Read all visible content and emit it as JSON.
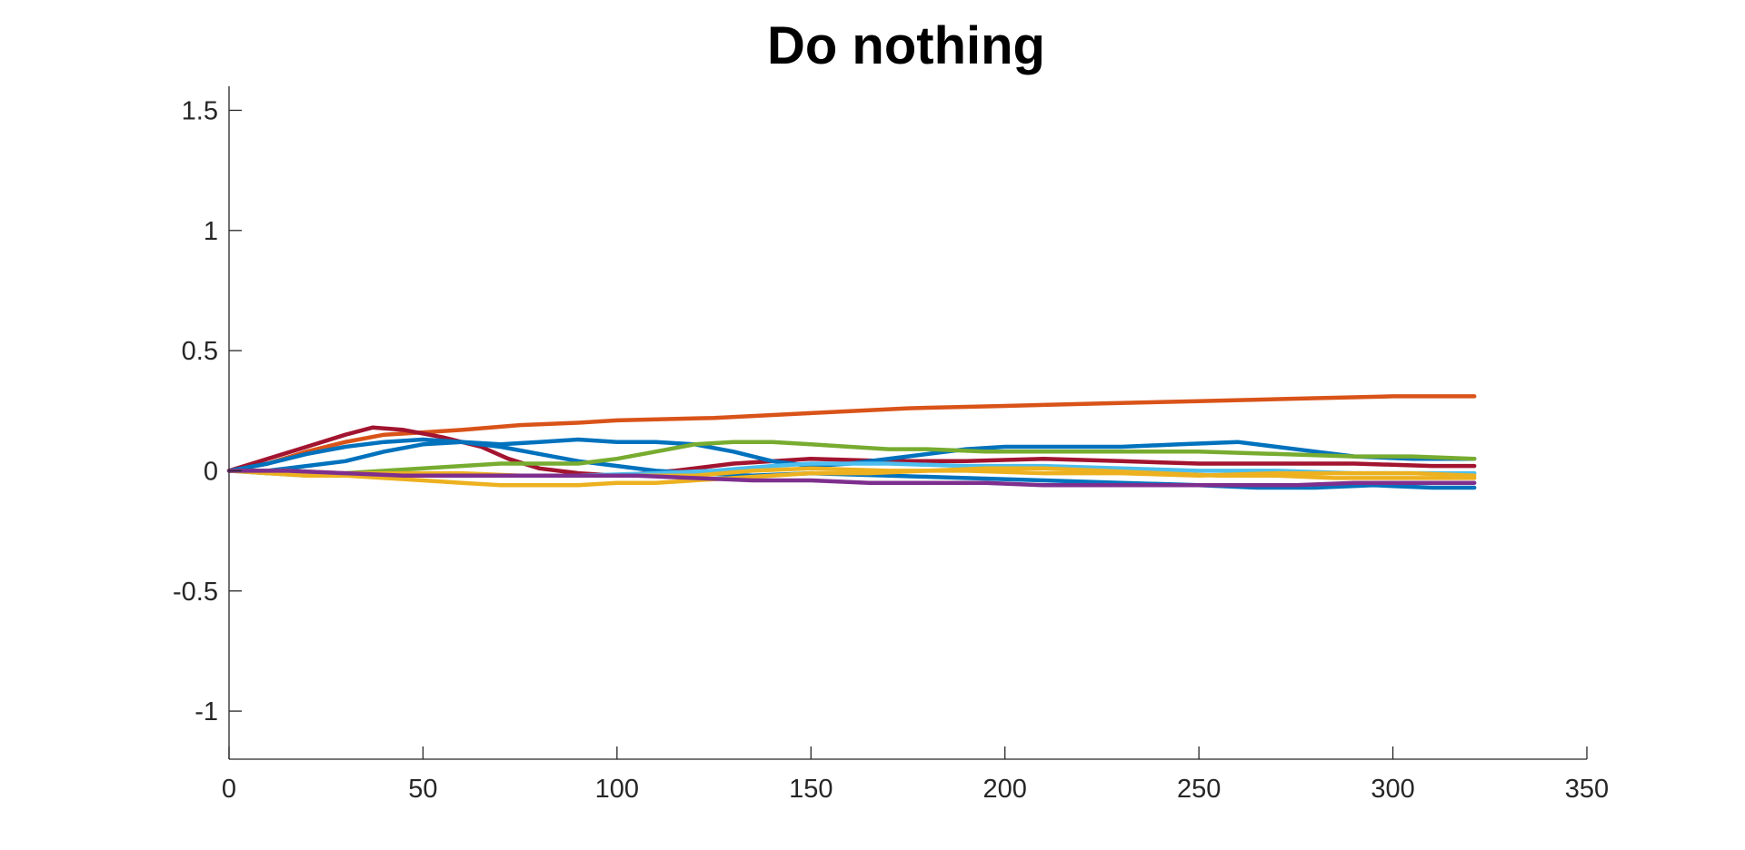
{
  "chart_data": {
    "type": "line",
    "title": "Do nothing",
    "xlabel": "",
    "ylabel": "",
    "xlim": [
      0,
      350
    ],
    "ylim": [
      -1.2,
      1.6
    ],
    "xticks": [
      0,
      50,
      100,
      150,
      200,
      250,
      300,
      350
    ],
    "xtick_labels": [
      "0",
      "50",
      "100",
      "150",
      "200",
      "250",
      "300",
      "350"
    ],
    "yticks": [
      -1,
      -0.5,
      0,
      0.5,
      1,
      1.5
    ],
    "ytick_labels": [
      "-1",
      "-0.5",
      "0",
      "0.5",
      "1",
      "1.5"
    ],
    "grid": false,
    "legend": "none",
    "colors": {
      "axis": "#262626",
      "title": "#000000",
      "background": "#ffffff"
    },
    "series": [
      {
        "color": "#D95319",
        "points": [
          [
            0,
            0
          ],
          [
            10,
            0.03
          ],
          [
            20,
            0.08
          ],
          [
            30,
            0.12
          ],
          [
            40,
            0.15
          ],
          [
            50,
            0.16
          ],
          [
            60,
            0.17
          ],
          [
            75,
            0.19
          ],
          [
            90,
            0.2
          ],
          [
            100,
            0.21
          ],
          [
            125,
            0.22
          ],
          [
            150,
            0.24
          ],
          [
            175,
            0.26
          ],
          [
            200,
            0.27
          ],
          [
            225,
            0.28
          ],
          [
            250,
            0.29
          ],
          [
            275,
            0.3
          ],
          [
            300,
            0.31
          ],
          [
            321,
            0.31
          ]
        ]
      },
      {
        "color": "#A2142F",
        "points": [
          [
            0,
            0
          ],
          [
            10,
            0.05
          ],
          [
            20,
            0.1
          ],
          [
            30,
            0.15
          ],
          [
            37,
            0.18
          ],
          [
            45,
            0.17
          ],
          [
            55,
            0.14
          ],
          [
            65,
            0.1
          ],
          [
            72,
            0.05
          ],
          [
            80,
            0.01
          ],
          [
            90,
            -0.01
          ],
          [
            100,
            -0.02
          ],
          [
            115,
            0.0
          ],
          [
            130,
            0.03
          ],
          [
            150,
            0.05
          ],
          [
            170,
            0.04
          ],
          [
            190,
            0.04
          ],
          [
            210,
            0.05
          ],
          [
            230,
            0.04
          ],
          [
            250,
            0.03
          ],
          [
            270,
            0.03
          ],
          [
            290,
            0.03
          ],
          [
            310,
            0.02
          ],
          [
            321,
            0.02
          ]
        ]
      },
      {
        "color": "#0072BD",
        "points": [
          [
            0,
            0
          ],
          [
            10,
            0.03
          ],
          [
            20,
            0.07
          ],
          [
            30,
            0.1
          ],
          [
            40,
            0.12
          ],
          [
            50,
            0.13
          ],
          [
            60,
            0.12
          ],
          [
            70,
            0.11
          ],
          [
            80,
            0.12
          ],
          [
            90,
            0.13
          ],
          [
            100,
            0.12
          ],
          [
            110,
            0.12
          ],
          [
            120,
            0.11
          ],
          [
            130,
            0.08
          ],
          [
            140,
            0.04
          ],
          [
            150,
            0.02
          ],
          [
            160,
            0.03
          ],
          [
            175,
            0.06
          ],
          [
            190,
            0.09
          ],
          [
            200,
            0.1
          ],
          [
            215,
            0.1
          ],
          [
            230,
            0.1
          ],
          [
            245,
            0.11
          ],
          [
            260,
            0.12
          ],
          [
            270,
            0.1
          ],
          [
            280,
            0.08
          ],
          [
            290,
            0.06
          ],
          [
            305,
            0.05
          ],
          [
            321,
            0.05
          ]
        ]
      },
      {
        "color": "#0072BD",
        "points": [
          [
            0,
            0
          ],
          [
            10,
            0.0
          ],
          [
            20,
            0.02
          ],
          [
            30,
            0.04
          ],
          [
            40,
            0.08
          ],
          [
            50,
            0.11
          ],
          [
            60,
            0.12
          ],
          [
            70,
            0.1
          ],
          [
            80,
            0.07
          ],
          [
            90,
            0.04
          ],
          [
            100,
            0.02
          ],
          [
            110,
            0.0
          ],
          [
            120,
            -0.01
          ],
          [
            135,
            -0.02
          ],
          [
            150,
            -0.01
          ],
          [
            170,
            -0.02
          ],
          [
            190,
            -0.03
          ],
          [
            210,
            -0.04
          ],
          [
            230,
            -0.05
          ],
          [
            250,
            -0.06
          ],
          [
            265,
            -0.07
          ],
          [
            280,
            -0.07
          ],
          [
            295,
            -0.06
          ],
          [
            310,
            -0.07
          ],
          [
            321,
            -0.07
          ]
        ]
      },
      {
        "color": "#77AC30",
        "points": [
          [
            0,
            0
          ],
          [
            10,
            -0.01
          ],
          [
            20,
            -0.01
          ],
          [
            30,
            -0.01
          ],
          [
            40,
            0.0
          ],
          [
            50,
            0.01
          ],
          [
            60,
            0.02
          ],
          [
            70,
            0.03
          ],
          [
            80,
            0.03
          ],
          [
            90,
            0.03
          ],
          [
            100,
            0.05
          ],
          [
            110,
            0.08
          ],
          [
            120,
            0.11
          ],
          [
            130,
            0.12
          ],
          [
            140,
            0.12
          ],
          [
            150,
            0.11
          ],
          [
            160,
            0.1
          ],
          [
            170,
            0.09
          ],
          [
            180,
            0.09
          ],
          [
            195,
            0.08
          ],
          [
            210,
            0.08
          ],
          [
            230,
            0.08
          ],
          [
            250,
            0.08
          ],
          [
            270,
            0.07
          ],
          [
            290,
            0.06
          ],
          [
            305,
            0.06
          ],
          [
            321,
            0.05
          ]
        ]
      },
      {
        "color": "#4DBEEE",
        "points": [
          [
            0,
            0
          ],
          [
            10,
            -0.01
          ],
          [
            20,
            -0.02
          ],
          [
            35,
            -0.02
          ],
          [
            50,
            -0.02
          ],
          [
            70,
            -0.02
          ],
          [
            90,
            -0.02
          ],
          [
            110,
            -0.01
          ],
          [
            125,
            0.0
          ],
          [
            140,
            0.02
          ],
          [
            150,
            0.03
          ],
          [
            170,
            0.03
          ],
          [
            190,
            0.02
          ],
          [
            210,
            0.02
          ],
          [
            230,
            0.01
          ],
          [
            250,
            0.0
          ],
          [
            270,
            0.0
          ],
          [
            290,
            -0.01
          ],
          [
            305,
            -0.01
          ],
          [
            321,
            -0.01
          ]
        ]
      },
      {
        "color": "#EDB120",
        "points": [
          [
            0,
            0
          ],
          [
            10,
            -0.01
          ],
          [
            20,
            -0.02
          ],
          [
            30,
            -0.02
          ],
          [
            40,
            -0.03
          ],
          [
            50,
            -0.04
          ],
          [
            60,
            -0.05
          ],
          [
            70,
            -0.06
          ],
          [
            80,
            -0.06
          ],
          [
            90,
            -0.06
          ],
          [
            100,
            -0.05
          ],
          [
            110,
            -0.05
          ],
          [
            120,
            -0.04
          ],
          [
            130,
            -0.03
          ],
          [
            140,
            -0.02
          ],
          [
            150,
            -0.01
          ],
          [
            165,
            -0.01
          ],
          [
            180,
            0.0
          ],
          [
            195,
            0.01
          ],
          [
            210,
            0.01
          ],
          [
            225,
            0.0
          ],
          [
            240,
            -0.01
          ],
          [
            255,
            -0.02
          ],
          [
            270,
            -0.02
          ],
          [
            285,
            -0.03
          ],
          [
            300,
            -0.03
          ],
          [
            321,
            -0.03
          ]
        ]
      },
      {
        "color": "#EDB120",
        "points": [
          [
            0,
            0
          ],
          [
            15,
            0.0
          ],
          [
            30,
            -0.01
          ],
          [
            45,
            -0.01
          ],
          [
            60,
            -0.01
          ],
          [
            75,
            -0.02
          ],
          [
            90,
            -0.02
          ],
          [
            105,
            -0.02
          ],
          [
            120,
            -0.02
          ],
          [
            135,
            0.0
          ],
          [
            150,
            0.01
          ],
          [
            170,
            0.0
          ],
          [
            190,
            0.0
          ],
          [
            210,
            -0.01
          ],
          [
            230,
            -0.01
          ],
          [
            250,
            -0.02
          ],
          [
            270,
            -0.01
          ],
          [
            290,
            -0.01
          ],
          [
            305,
            -0.01
          ],
          [
            321,
            -0.02
          ]
        ]
      },
      {
        "color": "#7E2F8E",
        "points": [
          [
            0,
            0
          ],
          [
            15,
            0.0
          ],
          [
            30,
            -0.01
          ],
          [
            45,
            -0.02
          ],
          [
            60,
            -0.02
          ],
          [
            75,
            -0.02
          ],
          [
            90,
            -0.02
          ],
          [
            105,
            -0.02
          ],
          [
            120,
            -0.03
          ],
          [
            135,
            -0.04
          ],
          [
            150,
            -0.04
          ],
          [
            165,
            -0.05
          ],
          [
            180,
            -0.05
          ],
          [
            195,
            -0.05
          ],
          [
            210,
            -0.06
          ],
          [
            225,
            -0.06
          ],
          [
            240,
            -0.06
          ],
          [
            255,
            -0.06
          ],
          [
            265,
            -0.06
          ],
          [
            275,
            -0.06
          ],
          [
            290,
            -0.05
          ],
          [
            305,
            -0.05
          ],
          [
            321,
            -0.05
          ]
        ]
      }
    ]
  }
}
